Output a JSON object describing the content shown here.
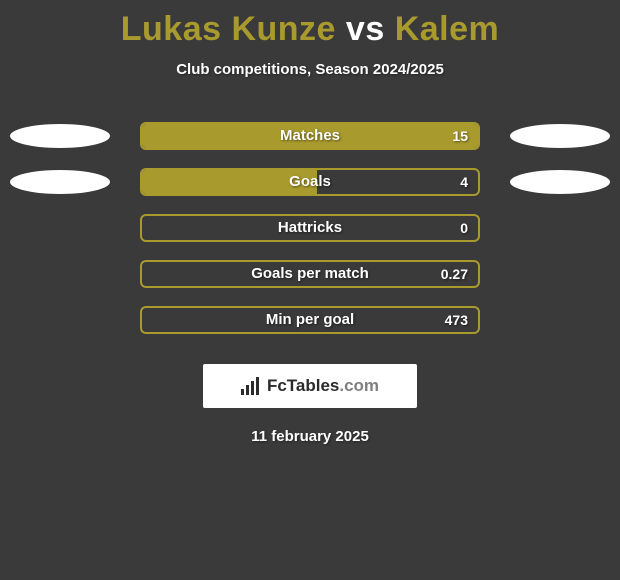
{
  "title_parts": {
    "p1": "Lukas Kunze",
    "vs": " vs ",
    "p2": "Kalem"
  },
  "title_color_p1": "#a99a2e",
  "title_color_vs": "#ffffff",
  "title_color_p2": "#a99a2e",
  "subtitle": "Club competitions, Season 2024/2025",
  "accent_color": "#a99a2e",
  "bar_shell_width": 340,
  "stats": [
    {
      "label": "Matches",
      "value": "15",
      "fill_pct": 100,
      "show_bubbles": true
    },
    {
      "label": "Goals",
      "value": "4",
      "fill_pct": 52,
      "show_bubbles": true
    },
    {
      "label": "Hattricks",
      "value": "0",
      "fill_pct": 0,
      "show_bubbles": false
    },
    {
      "label": "Goals per match",
      "value": "0.27",
      "fill_pct": 0,
      "show_bubbles": false
    },
    {
      "label": "Min per goal",
      "value": "473",
      "fill_pct": 0,
      "show_bubbles": false
    }
  ],
  "brand": {
    "name": "FcTables",
    "suffix": ".com"
  },
  "date": "11 february 2025",
  "background_color": "#3a3a3a",
  "text_color": "#ffffff"
}
